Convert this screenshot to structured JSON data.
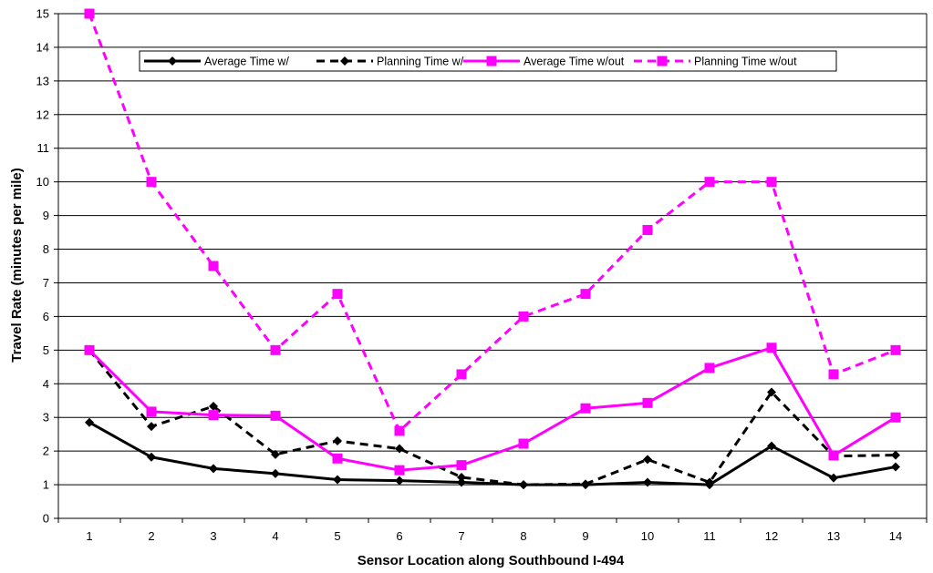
{
  "chart_data": {
    "type": "line",
    "title": "",
    "xlabel": "Sensor Location along Southbound I-494",
    "ylabel": "Travel Rate (minutes per mile)",
    "categories": [
      "1",
      "2",
      "3",
      "4",
      "5",
      "6",
      "7",
      "8",
      "9",
      "10",
      "11",
      "12",
      "13",
      "14"
    ],
    "ylim": [
      0,
      15
    ],
    "yticks": [
      "0",
      "1",
      "2",
      "3",
      "4",
      "5",
      "6",
      "7",
      "8",
      "9",
      "10",
      "11",
      "12",
      "13",
      "14",
      "15"
    ],
    "grid": true,
    "legend_position": "top",
    "series": [
      {
        "name": "Average Time w/",
        "color": "#000000",
        "line": "solid",
        "marker": "diamond",
        "values": [
          2.85,
          1.82,
          1.48,
          1.33,
          1.15,
          1.12,
          1.07,
          1.0,
          1.0,
          1.07,
          1.0,
          2.15,
          1.2,
          1.53
        ]
      },
      {
        "name": "Planning Time w/",
        "color": "#000000",
        "line": "dashed",
        "marker": "diamond",
        "values": [
          5.0,
          2.73,
          3.33,
          1.9,
          2.3,
          2.07,
          1.22,
          1.0,
          1.02,
          1.75,
          1.07,
          3.75,
          1.85,
          1.88
        ]
      },
      {
        "name": "Average Time w/out",
        "color": "#ff00ff",
        "line": "solid",
        "marker": "square",
        "values": [
          5.0,
          3.17,
          3.07,
          3.05,
          1.78,
          1.43,
          1.58,
          2.22,
          3.27,
          3.43,
          4.47,
          5.07,
          1.87,
          3.0
        ]
      },
      {
        "name": "Planning Time w/out",
        "color": "#ff00ff",
        "line": "dashed",
        "marker": "square",
        "values": [
          15.0,
          10.0,
          7.5,
          5.0,
          6.67,
          2.6,
          4.28,
          6.0,
          6.67,
          8.57,
          10.0,
          10.0,
          4.28,
          5.0
        ]
      }
    ]
  }
}
